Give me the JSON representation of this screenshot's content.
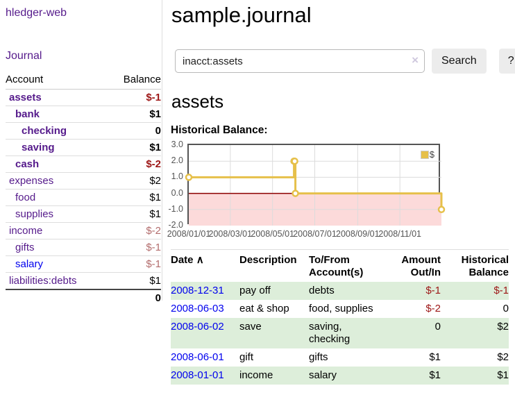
{
  "sidebar": {
    "app_title": "hledger-web",
    "journal_link": "Journal",
    "accounts_table": {
      "header": {
        "account": "Account",
        "balance": "Balance"
      },
      "rows": [
        {
          "name": "assets",
          "balance": "$-1",
          "indent": 1,
          "bold": true,
          "balance_class": "neg-strong",
          "blue": false
        },
        {
          "name": "bank",
          "balance": "$1",
          "indent": 2,
          "bold": true,
          "balance_class": "",
          "blue": false
        },
        {
          "name": "checking",
          "balance": "0",
          "indent": 3,
          "bold": true,
          "balance_class": "",
          "blue": false
        },
        {
          "name": "saving",
          "balance": "$1",
          "indent": 3,
          "bold": true,
          "balance_class": "",
          "blue": false
        },
        {
          "name": "cash",
          "balance": "$-2",
          "indent": 2,
          "bold": true,
          "balance_class": "neg-strong",
          "blue": false
        },
        {
          "name": "expenses",
          "balance": "$2",
          "indent": 1,
          "bold": false,
          "balance_class": "",
          "blue": false
        },
        {
          "name": "food",
          "balance": "$1",
          "indent": 2,
          "bold": false,
          "balance_class": "",
          "blue": false
        },
        {
          "name": "supplies",
          "balance": "$1",
          "indent": 2,
          "bold": false,
          "balance_class": "",
          "blue": false
        },
        {
          "name": "income",
          "balance": "$-2",
          "indent": 1,
          "bold": false,
          "balance_class": "neg-muted",
          "blue": false
        },
        {
          "name": "gifts",
          "balance": "$-1",
          "indent": 2,
          "bold": false,
          "balance_class": "neg-muted",
          "blue": false
        },
        {
          "name": "salary",
          "balance": "$-1",
          "indent": 2,
          "bold": false,
          "balance_class": "neg-muted",
          "blue": true
        },
        {
          "name": "liabilities:debts",
          "balance": "$1",
          "indent": 1,
          "bold": false,
          "balance_class": "",
          "blue": false
        }
      ],
      "total": "0"
    }
  },
  "main": {
    "title": "sample.journal",
    "search": {
      "value": "inacct:assets",
      "clear_icon": "×",
      "search_button": "Search",
      "help_button": "?"
    },
    "account_heading": "assets",
    "section_label": "Historical Balance:"
  },
  "chart_data": {
    "type": "line",
    "step": true,
    "title": "Historical Balance",
    "x_range": [
      "2008-01-01",
      "2008-12-31"
    ],
    "ylim": [
      -2,
      3
    ],
    "yticks": [
      3,
      2,
      1,
      0,
      -1,
      -2
    ],
    "ytick_labels": [
      "3.0",
      "2.0",
      "1.0",
      "0.0",
      "-1.0",
      "-2.0"
    ],
    "xtick_dates": [
      "2008-01-01",
      "2008-03-01",
      "2008-05-01",
      "2008-07-01",
      "2008-09-01",
      "2008-11-01"
    ],
    "xtick_labels": [
      "2008/01/01",
      "2008/03/01",
      "2008/05/01",
      "2008/07/01",
      "2008/09/01",
      "2008/11/01"
    ],
    "grid": true,
    "legend": {
      "label": "$",
      "position": "top-right"
    },
    "negative_region_color": "#fcdada",
    "zero_line_color": "#8b0000",
    "series": [
      {
        "name": "$",
        "color": "#e6c04a",
        "points": [
          [
            "2008-01-01",
            1
          ],
          [
            "2008-06-01",
            2
          ],
          [
            "2008-06-02",
            2
          ],
          [
            "2008-06-03",
            0
          ],
          [
            "2008-12-31",
            -1
          ]
        ]
      }
    ]
  },
  "register": {
    "headers": {
      "date": "Date",
      "sort_icon": "∧",
      "description": "Description",
      "to_from_1": "To/From",
      "to_from_2": "Account(s)",
      "amount_1": "Amount",
      "amount_2": "Out/In",
      "balance_1": "Historical",
      "balance_2": "Balance"
    },
    "rows": [
      {
        "date": "2008-12-31",
        "description": "pay off",
        "to_from": "debts",
        "amount": "$-1",
        "balance": "$-1"
      },
      {
        "date": "2008-06-03",
        "description": "eat & shop",
        "to_from": "food, supplies",
        "amount": "$-2",
        "balance": "0"
      },
      {
        "date": "2008-06-02",
        "description": "save",
        "to_from": "saving,\nchecking",
        "amount": "0",
        "balance": "$2"
      },
      {
        "date": "2008-06-01",
        "description": "gift",
        "to_from": "gifts",
        "amount": "$1",
        "balance": "$2"
      },
      {
        "date": "2008-01-01",
        "description": "income",
        "to_from": "salary",
        "amount": "$1",
        "balance": "$1"
      }
    ]
  }
}
